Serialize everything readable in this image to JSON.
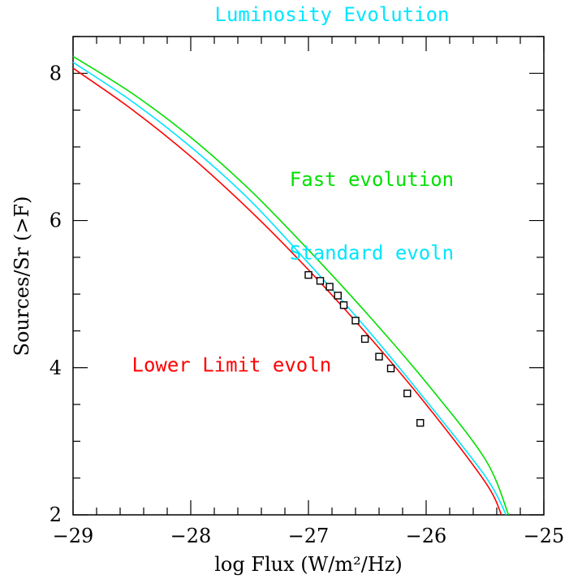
{
  "chart_data": {
    "type": "line",
    "title": "Luminosity Evolution",
    "xlabel": "log Flux (W/m²/Hz)",
    "ylabel": "Sources/Sr (>F)",
    "xlim": [
      -29,
      -25
    ],
    "ylim": [
      2,
      8.5
    ],
    "x_ticks": [
      -29,
      -28,
      -27,
      -26,
      -25
    ],
    "x_tick_labels": [
      "−29",
      "−28",
      "−27",
      "−26",
      "−25"
    ],
    "y_ticks": [
      2,
      4,
      6,
      8
    ],
    "y_tick_labels": [
      "2",
      "4",
      "6",
      "8"
    ],
    "grid": false,
    "colors": {
      "title": "#00e5ff",
      "fast": "#00e000",
      "standard": "#00e5ff",
      "lower": "#ff0000",
      "points": "#000000"
    },
    "series": [
      {
        "name": "Fast evolution",
        "color": "#00e000",
        "x": [
          -29,
          -28.5,
          -28,
          -27.5,
          -27,
          -26.5,
          -26,
          -25.5,
          -25.3
        ],
        "y": [
          8.23,
          7.73,
          7.13,
          6.42,
          5.6,
          4.73,
          3.8,
          2.76,
          2.0
        ]
      },
      {
        "name": "Standard evoln",
        "color": "#00e5ff",
        "x": [
          -29,
          -28.5,
          -28,
          -27.5,
          -27,
          -26.5,
          -26,
          -25.5,
          -25.32
        ],
        "y": [
          8.15,
          7.62,
          7.0,
          6.28,
          5.42,
          4.52,
          3.55,
          2.53,
          2.0
        ]
      },
      {
        "name": "Lower Limit evoln",
        "color": "#ff0000",
        "x": [
          -29,
          -28.5,
          -28,
          -27.5,
          -27,
          -26.5,
          -26,
          -25.5,
          -25.36
        ],
        "y": [
          8.07,
          7.51,
          6.87,
          6.14,
          5.33,
          4.45,
          3.5,
          2.45,
          2.0
        ]
      }
    ],
    "points": {
      "marker": "square",
      "x": [
        -27.0,
        -26.9,
        -26.82,
        -26.75,
        -26.7,
        -26.6,
        -26.52,
        -26.4,
        -26.3,
        -26.16,
        -26.05
      ],
      "y": [
        5.26,
        5.18,
        5.1,
        4.98,
        4.85,
        4.64,
        4.39,
        4.15,
        3.99,
        3.65,
        3.25
      ]
    },
    "annotations": [
      {
        "text": "Fast evolution",
        "x": -27.16,
        "y": 6.47,
        "color": "#00e000"
      },
      {
        "text": "Standard evoln",
        "x": -27.16,
        "y": 5.47,
        "color": "#00e5ff"
      },
      {
        "text": "Lower Limit evoln",
        "x": -28.5,
        "y": 3.95,
        "color": "#ff0000"
      }
    ]
  }
}
